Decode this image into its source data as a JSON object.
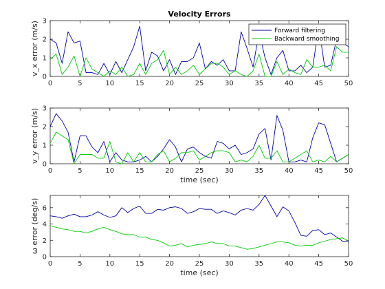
{
  "colors": {
    "forward": "#0000aa",
    "backward": "#00cc00",
    "axis": "#262626"
  },
  "chart_data": [
    {
      "type": "line",
      "title": "Velocity Errors",
      "ylabel": "v_x error (m/s)",
      "xlabel": "",
      "xlim": [
        0,
        50
      ],
      "ylim": [
        0,
        3
      ],
      "xticks": [
        0,
        5,
        10,
        15,
        20,
        25,
        30,
        35,
        40,
        45,
        50
      ],
      "yticks": [
        0,
        1,
        2,
        3
      ],
      "legend": {
        "placement": "top-right",
        "entries": [
          "Forward filtering",
          "Backward smoothing"
        ]
      },
      "x": [
        0,
        1,
        2,
        3,
        4,
        5,
        6,
        7,
        8,
        9,
        10,
        11,
        12,
        13,
        14,
        15,
        16,
        17,
        18,
        19,
        20,
        21,
        22,
        23,
        24,
        25,
        26,
        27,
        28,
        29,
        30,
        31,
        32,
        33,
        34,
        35,
        36,
        37,
        38,
        39,
        40,
        41,
        42,
        43,
        44,
        45,
        46,
        47,
        48,
        49,
        50
      ],
      "series": [
        {
          "name": "Forward filtering",
          "color": "#0000aa",
          "values": [
            2.0,
            1.8,
            0.7,
            2.4,
            1.8,
            1.9,
            0.2,
            0.2,
            0.1,
            0.7,
            0.1,
            0.8,
            0.2,
            0.9,
            1.6,
            2.7,
            0.3,
            1.3,
            1.1,
            0.3,
            0.9,
            0.1,
            0.8,
            0.8,
            1.0,
            1.8,
            0.4,
            0.8,
            0.6,
            0.9,
            0.3,
            0.3,
            2.4,
            1.5,
            0.5,
            2.4,
            1.0,
            0.1,
            1.0,
            1.4,
            0.3,
            0.3,
            0.6,
            0.2,
            0.5,
            2.7,
            0.5,
            0.6,
            2.0,
            1.8,
            1.6
          ]
        },
        {
          "name": "Backward smoothing",
          "color": "#00cc00",
          "values": [
            0.9,
            1.2,
            0.1,
            0.5,
            1.1,
            0.0,
            1.0,
            0.4,
            0.2,
            0.0,
            0.3,
            0.1,
            0.5,
            0.0,
            0.1,
            0.7,
            0.1,
            0.7,
            0.9,
            1.4,
            0.1,
            0.5,
            0.1,
            0.3,
            0.6,
            0.1,
            0.4,
            0.7,
            0.7,
            0.5,
            0.1,
            0.3,
            0.1,
            0.0,
            0.3,
            1.2,
            0.0,
            0.0,
            0.8,
            0.1,
            0.4,
            0.2,
            0.1,
            0.9,
            0.5,
            0.5,
            0.6,
            0.3,
            1.6,
            1.3,
            1.3
          ]
        }
      ]
    },
    {
      "type": "line",
      "title": "",
      "ylabel": "v_y error (m/s)",
      "xlabel": "time (sec)",
      "xlim": [
        0,
        50
      ],
      "ylim": [
        0,
        3
      ],
      "xticks": [
        0,
        5,
        10,
        15,
        20,
        25,
        30,
        35,
        40,
        45,
        50
      ],
      "yticks": [
        0,
        1,
        2,
        3
      ],
      "x": [
        0,
        1,
        2,
        3,
        4,
        5,
        6,
        7,
        8,
        9,
        10,
        11,
        12,
        13,
        14,
        15,
        16,
        17,
        18,
        19,
        20,
        21,
        22,
        23,
        24,
        25,
        26,
        27,
        28,
        29,
        30,
        31,
        32,
        33,
        34,
        35,
        36,
        37,
        38,
        39,
        40,
        41,
        42,
        43,
        44,
        45,
        46,
        47,
        48,
        49,
        50
      ],
      "series": [
        {
          "name": "Forward filtering",
          "color": "#0000aa",
          "values": [
            2.0,
            2.7,
            2.3,
            1.7,
            0.1,
            1.5,
            1.5,
            0.9,
            0.6,
            1.2,
            0.1,
            0.6,
            0.2,
            0.1,
            0.1,
            0.2,
            0.4,
            0.1,
            0.4,
            0.8,
            1.3,
            0.9,
            0.1,
            0.8,
            0.9,
            0.6,
            0.4,
            0.3,
            1.2,
            1.1,
            0.8,
            1.0,
            0.5,
            0.6,
            0.8,
            1.6,
            1.9,
            0.2,
            2.6,
            1.8,
            0.1,
            0.1,
            0.2,
            0.1,
            1.4,
            2.2,
            2.1,
            1.1,
            0.1,
            0.3,
            0.5
          ]
        },
        {
          "name": "Backward smoothing",
          "color": "#00cc00",
          "values": [
            1.1,
            1.7,
            1.5,
            1.3,
            0.0,
            0.5,
            0.5,
            0.5,
            0.3,
            0.3,
            1.2,
            0.1,
            0.0,
            0.6,
            0.1,
            0.6,
            0.1,
            0.1,
            0.5,
            0.7,
            0.1,
            0.3,
            0.6,
            0.6,
            0.7,
            0.2,
            0.4,
            0.6,
            0.7,
            0.7,
            0.6,
            0.1,
            0.2,
            0.1,
            0.4,
            1.0,
            0.3,
            0.3,
            0.7,
            0.1,
            0.1,
            0.3,
            0.5,
            0.7,
            0.1,
            0.2,
            0.1,
            0.4,
            0.1,
            0.3,
            0.5
          ]
        }
      ]
    },
    {
      "type": "line",
      "title": "",
      "ylabel": "ω error (deg/s)",
      "xlabel": "time (sec)",
      "xlim": [
        0,
        50
      ],
      "ylim": [
        0,
        7.5
      ],
      "xticks": [
        0,
        5,
        10,
        15,
        20,
        25,
        30,
        35,
        40,
        45,
        50
      ],
      "yticks": [
        0,
        2,
        4,
        6
      ],
      "x": [
        0,
        1,
        2,
        3,
        4,
        5,
        6,
        7,
        8,
        9,
        10,
        11,
        12,
        13,
        14,
        15,
        16,
        17,
        18,
        19,
        20,
        21,
        22,
        23,
        24,
        25,
        26,
        27,
        28,
        29,
        30,
        31,
        32,
        33,
        34,
        35,
        36,
        37,
        38,
        39,
        40,
        41,
        42,
        43,
        44,
        45,
        46,
        47,
        48,
        49,
        50
      ],
      "series": [
        {
          "name": "Forward filtering",
          "color": "#0000aa",
          "values": [
            5.0,
            4.9,
            4.7,
            5.0,
            5.2,
            4.9,
            4.9,
            5.1,
            5.5,
            5.1,
            4.8,
            5.0,
            6.0,
            5.4,
            5.9,
            6.2,
            5.3,
            5.3,
            5.8,
            5.7,
            6.0,
            6.1,
            5.9,
            5.3,
            5.5,
            5.9,
            5.8,
            5.8,
            5.3,
            5.6,
            5.4,
            5.1,
            5.7,
            5.9,
            5.7,
            6.4,
            7.5,
            6.2,
            4.9,
            6.1,
            5.6,
            4.2,
            2.6,
            2.5,
            3.2,
            3.3,
            2.7,
            2.9,
            2.4,
            1.9,
            1.8
          ]
        },
        {
          "name": "Backward smoothing",
          "color": "#00cc00",
          "values": [
            3.8,
            3.6,
            3.4,
            3.3,
            3.1,
            3.1,
            2.9,
            3.1,
            3.4,
            3.6,
            3.3,
            3.1,
            2.8,
            2.7,
            2.7,
            2.4,
            2.4,
            2.1,
            2.0,
            1.7,
            1.3,
            1.4,
            1.6,
            1.2,
            1.4,
            1.5,
            1.6,
            1.8,
            1.6,
            1.6,
            1.3,
            1.3,
            1.1,
            0.9,
            1.0,
            1.2,
            1.4,
            1.6,
            1.8,
            1.8,
            1.7,
            1.4,
            1.3,
            1.4,
            1.4,
            1.7,
            1.9,
            2.1,
            2.2,
            2.3,
            1.9
          ]
        }
      ]
    }
  ]
}
